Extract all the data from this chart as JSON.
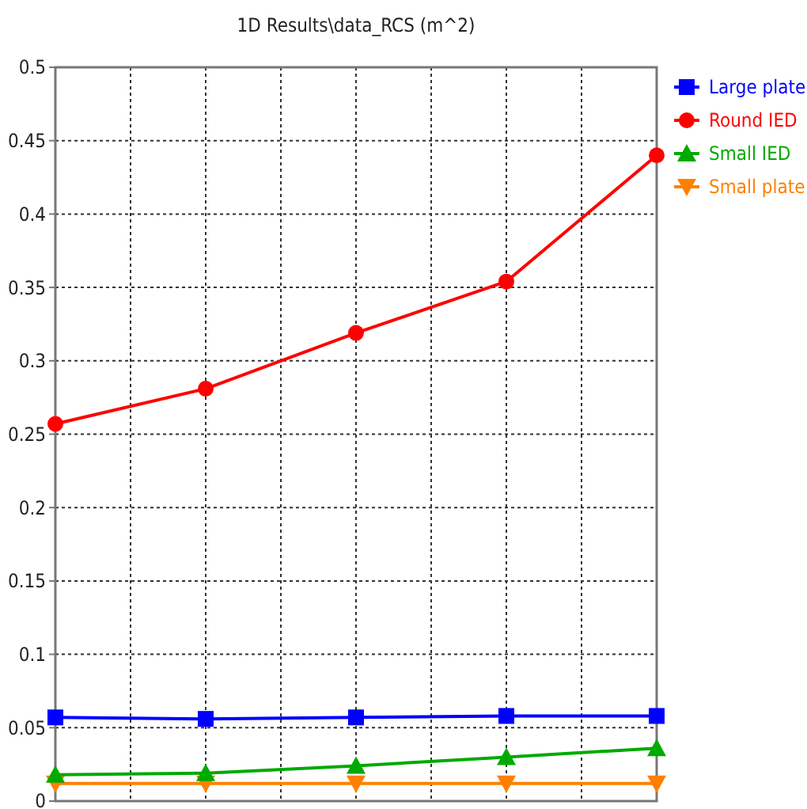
{
  "chart_data": {
    "type": "line",
    "title": "1D Results\\data_RCS (m^2)",
    "categories": [
      null,
      null,
      null,
      null,
      null
    ],
    "ylim": [
      0,
      0.5
    ],
    "yticks": [
      0,
      0.05,
      0.1,
      0.15,
      0.2,
      0.25,
      0.3,
      0.35,
      0.4,
      0.45,
      0.5
    ],
    "grid": true,
    "legend": "top right",
    "line_style": "solid",
    "series": [
      {
        "name": "Large plate",
        "color": "#0000ff",
        "marker": "square",
        "values": [
          0.057,
          0.056,
          0.057,
          0.058,
          0.058
        ]
      },
      {
        "name": "Round IED",
        "color": "#ff0000",
        "marker": "circle",
        "values": [
          0.257,
          0.281,
          0.319,
          0.354,
          0.44
        ]
      },
      {
        "name": "Small IED",
        "color": "#00aa00",
        "marker": "triangle",
        "values": [
          0.018,
          0.019,
          0.024,
          0.03,
          0.036
        ]
      },
      {
        "name": "Small plate",
        "color": "#ff8000",
        "marker": "triangle-down",
        "values": [
          0.012,
          0.012,
          0.012,
          0.012,
          0.012
        ]
      }
    ]
  }
}
